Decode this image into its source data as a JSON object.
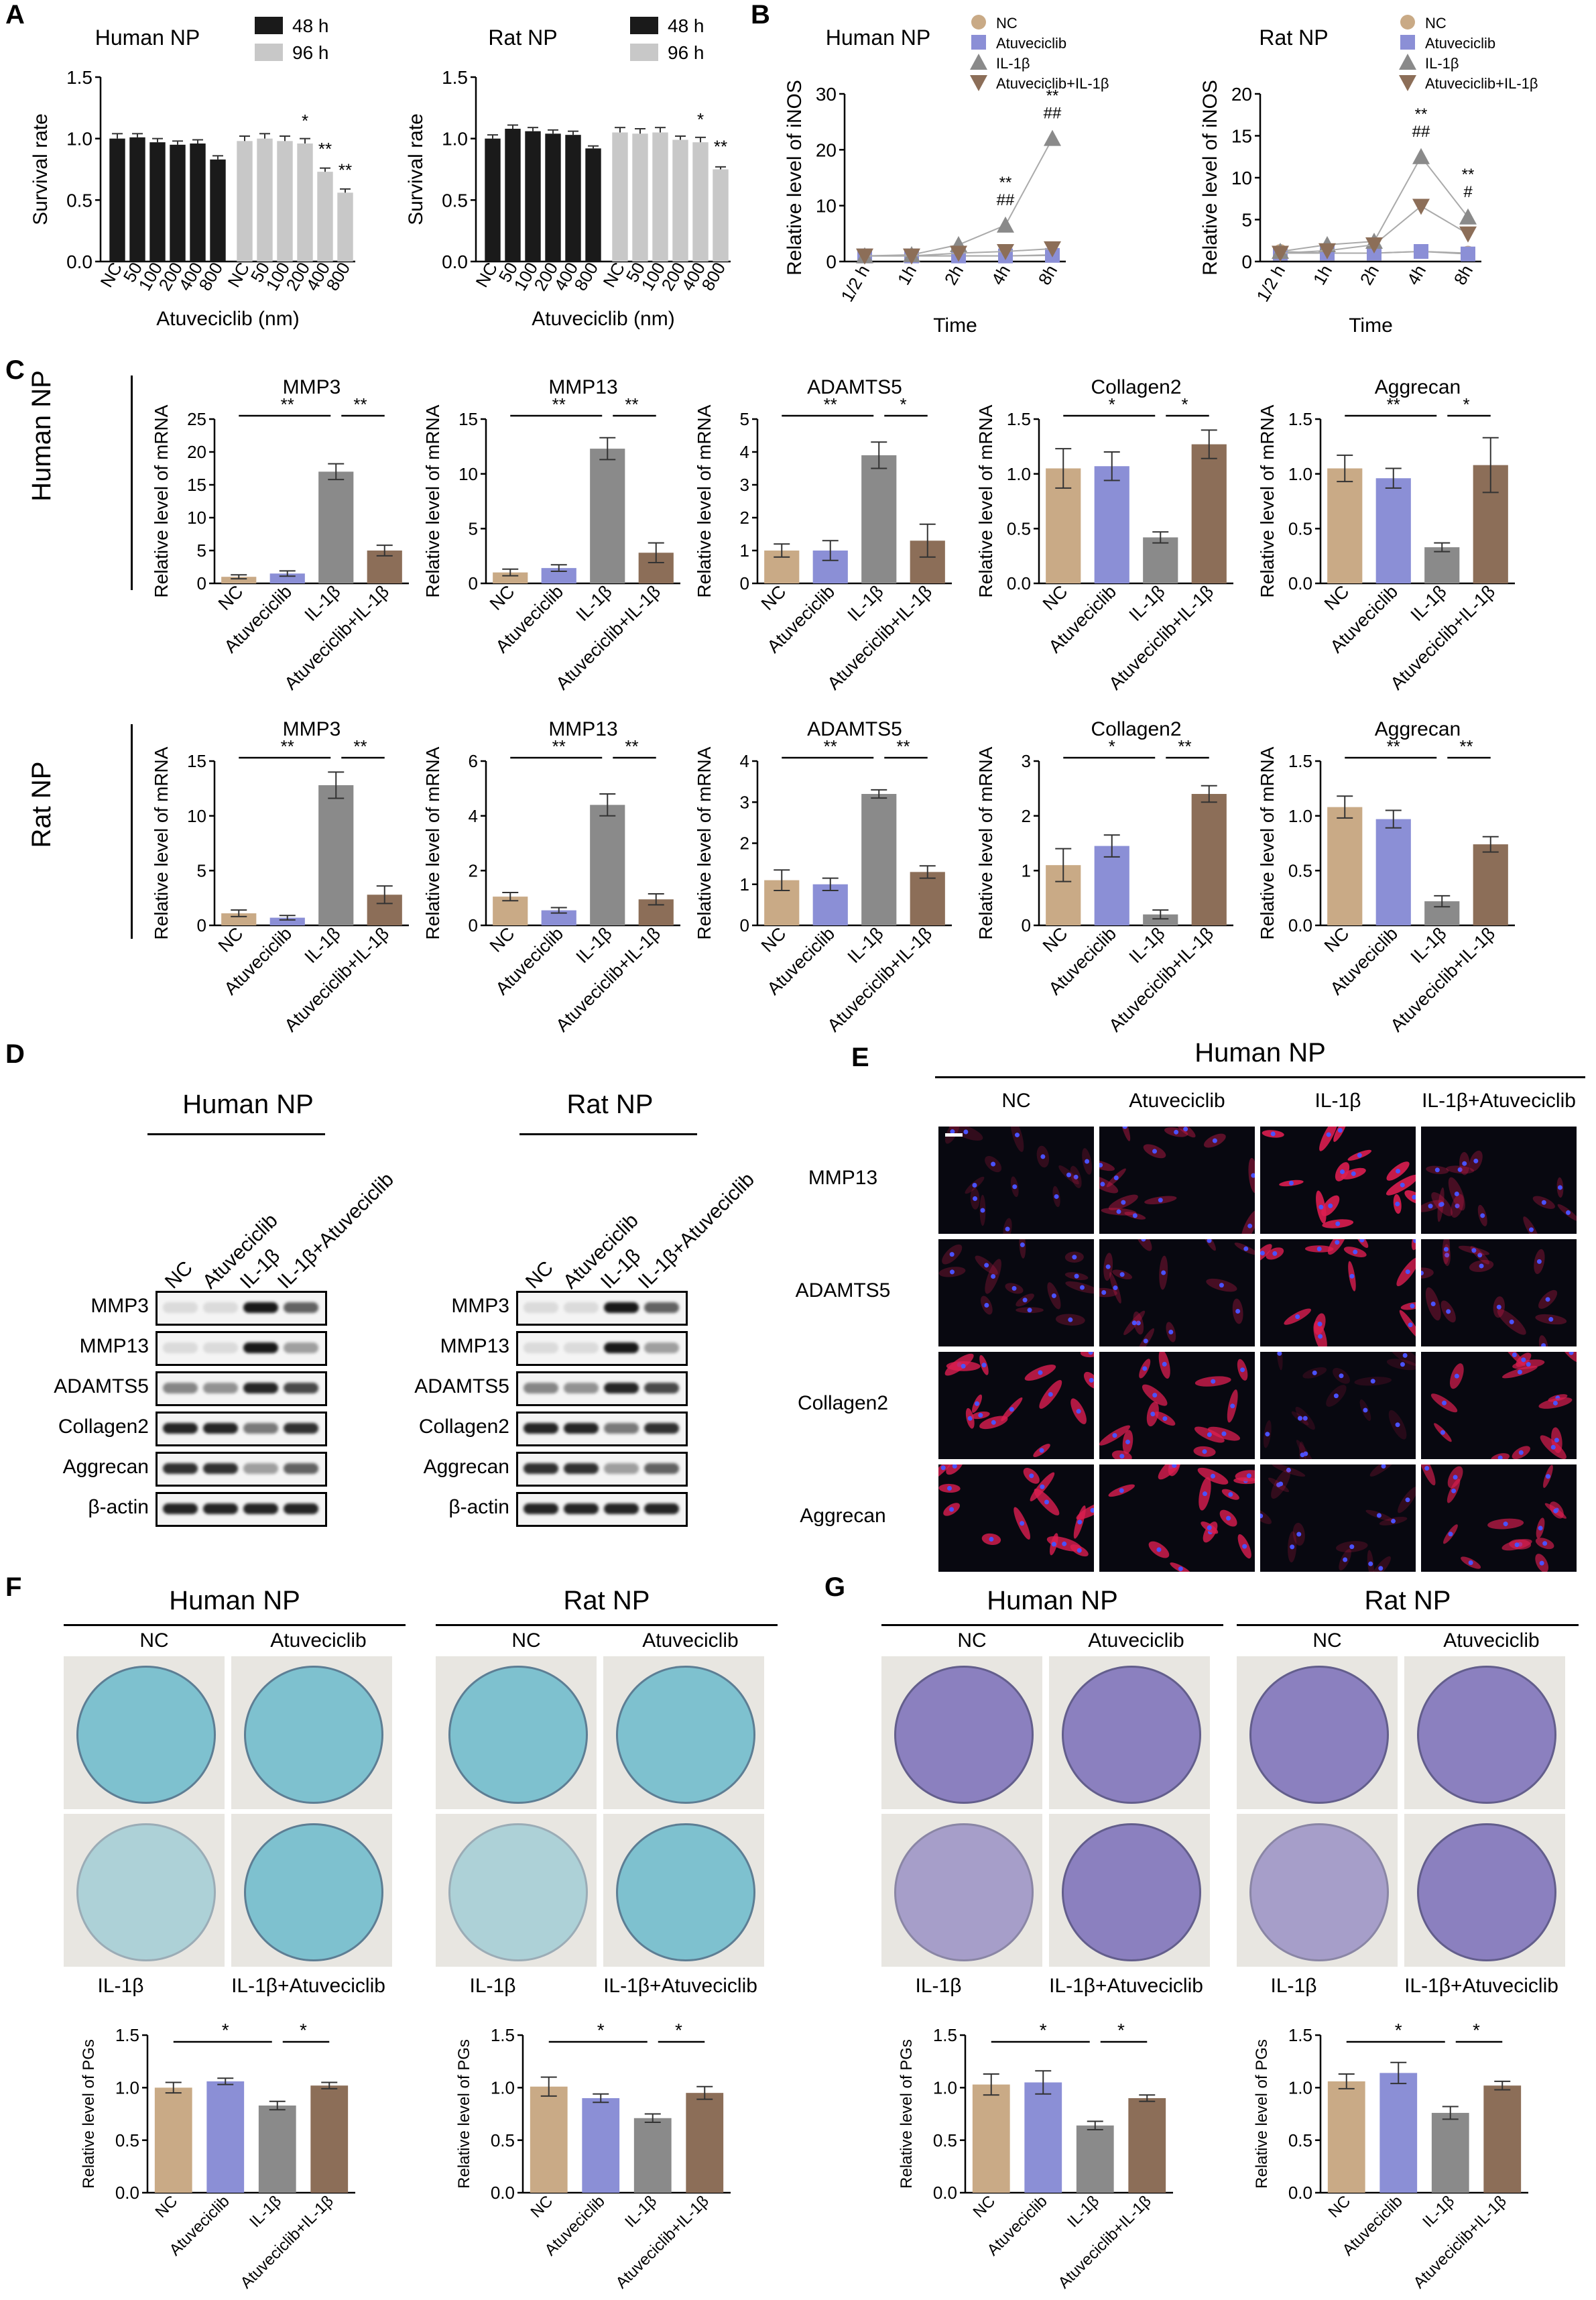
{
  "colors": {
    "nc": "#c9aa86",
    "atu": "#8b8fd6",
    "il": "#8a8a8a",
    "combo": "#8c6e58",
    "black": "#1a1a1a",
    "gray": "#c8c8c8",
    "alcian": "#7ec1cf",
    "crystal": "#8b80bf"
  },
  "panels": {
    "A": "A",
    "B": "B",
    "C": "C",
    "D": "D",
    "E": "E",
    "F": "F",
    "G": "G"
  },
  "row_labels": {
    "human": "Human NP",
    "rat": "Rat NP"
  },
  "panelD": {
    "human_header": "Human NP",
    "rat_header": "Rat NP",
    "lanes": [
      "NC",
      "Atuveciclib",
      "IL-1β",
      "IL-1β+Atuveciclib"
    ],
    "proteins": [
      "MMP3",
      "MMP13",
      "ADAMTS5",
      "Collagen2",
      "Aggrecan",
      "β-actin"
    ]
  },
  "panelE": {
    "header": "Human NP",
    "columns": [
      "NC",
      "Atuveciclib",
      "IL-1β",
      "IL-1β+Atuveciclib"
    ],
    "rows": [
      "MMP13",
      "ADAMTS5",
      "Collagen2",
      "Aggrecan"
    ]
  },
  "panelF": {
    "human_header": "Human NP",
    "rat_header": "Rat NP",
    "top_left": "NC",
    "top_right": "Atuveciclib",
    "bottom_left": "IL-1β",
    "bottom_right": "IL-1β+Atuveciclib"
  },
  "panelG": {
    "human_header": "Human NP",
    "rat_header": "Rat NP",
    "top_left": "NC",
    "top_right": "Atuveciclib",
    "bottom_left": "IL-1β",
    "bottom_right": "IL-1β+Atuveciclib"
  },
  "chart_data": [
    {
      "id": "A-human",
      "type": "bar",
      "title": "Human NP",
      "ylabel": "Survival rate",
      "xlabel": "Atuveciclib (nm)",
      "ylim": [
        0,
        1.5
      ],
      "yticks": [
        0.0,
        0.5,
        1.0,
        1.5
      ],
      "legend": [
        "48 h",
        "96 h"
      ],
      "categories": [
        "NC",
        "50",
        "100",
        "200",
        "400",
        "800"
      ],
      "series": [
        {
          "name": "48 h",
          "values": [
            1.0,
            1.01,
            0.97,
            0.95,
            0.96,
            0.83
          ],
          "errors": [
            0.04,
            0.03,
            0.03,
            0.03,
            0.03,
            0.03
          ],
          "sig": [
            "",
            "",
            "",
            "",
            "",
            ""
          ]
        },
        {
          "name": "96 h",
          "values": [
            0.98,
            1.0,
            0.98,
            0.96,
            0.73,
            0.56
          ],
          "errors": [
            0.04,
            0.04,
            0.04,
            0.04,
            0.03,
            0.03
          ],
          "sig": [
            "",
            "",
            "",
            "*",
            "**",
            "**"
          ]
        }
      ]
    },
    {
      "id": "A-rat",
      "type": "bar",
      "title": "Rat NP",
      "ylabel": "Survival rate",
      "xlabel": "Atuveciclib (nm)",
      "ylim": [
        0,
        1.5
      ],
      "yticks": [
        0.0,
        0.5,
        1.0,
        1.5
      ],
      "legend": [
        "48 h",
        "96 h"
      ],
      "categories": [
        "NC",
        "50",
        "100",
        "200",
        "400",
        "800"
      ],
      "series": [
        {
          "name": "48 h",
          "values": [
            1.0,
            1.08,
            1.06,
            1.04,
            1.03,
            0.92
          ],
          "errors": [
            0.03,
            0.03,
            0.03,
            0.03,
            0.03,
            0.02
          ],
          "sig": [
            "",
            "",
            "",
            "",
            "",
            ""
          ]
        },
        {
          "name": "96 h",
          "values": [
            1.05,
            1.04,
            1.05,
            0.99,
            0.97,
            0.75
          ],
          "errors": [
            0.04,
            0.04,
            0.04,
            0.03,
            0.04,
            0.02
          ],
          "sig": [
            "",
            "",
            "",
            "",
            "*",
            "**"
          ]
        }
      ]
    },
    {
      "id": "B-human",
      "type": "line",
      "title": "Human NP",
      "ylabel": "Relative level of iNOS",
      "xlabel": "Time",
      "ylim": [
        0,
        30
      ],
      "yticks": [
        0,
        10,
        20,
        30
      ],
      "x": [
        "1/2 h",
        "1h",
        "2h",
        "4h",
        "8h"
      ],
      "series": [
        {
          "name": "NC",
          "values": [
            1.0,
            1.0,
            1.0,
            1.0,
            1.2
          ]
        },
        {
          "name": "Atuveciclib",
          "values": [
            1.0,
            1.0,
            1.0,
            1.0,
            1.1
          ]
        },
        {
          "name": "IL-1β",
          "values": [
            1.0,
            1.2,
            3.0,
            6.5,
            22.0
          ]
        },
        {
          "name": "Atuveciclib+IL-1β",
          "values": [
            1.0,
            1.0,
            1.5,
            1.8,
            2.3
          ]
        }
      ],
      "annotations": [
        {
          "x": "4h",
          "text": "**"
        },
        {
          "x": "4h",
          "text": "##"
        },
        {
          "x": "8h",
          "text": "**"
        },
        {
          "x": "8h",
          "text": "##"
        }
      ]
    },
    {
      "id": "B-rat",
      "type": "line",
      "title": "Rat NP",
      "ylabel": "Relative level of iNOS",
      "xlabel": "Time",
      "ylim": [
        0,
        20
      ],
      "yticks": [
        0,
        5,
        10,
        15,
        20
      ],
      "x": [
        "1/2 h",
        "1h",
        "2h",
        "4h",
        "8h"
      ],
      "series": [
        {
          "name": "NC",
          "values": [
            1.2,
            1.0,
            1.0,
            1.2,
            1.0
          ]
        },
        {
          "name": "Atuveciclib",
          "values": [
            1.0,
            1.0,
            1.0,
            1.2,
            0.9
          ]
        },
        {
          "name": "IL-1β",
          "values": [
            1.2,
            2.0,
            2.4,
            12.5,
            5.3
          ]
        },
        {
          "name": "Atuveciclib+IL-1β",
          "values": [
            1.0,
            1.3,
            2.0,
            6.6,
            3.3
          ]
        }
      ],
      "annotations": [
        {
          "x": "4h",
          "text": "**"
        },
        {
          "x": "4h",
          "text": "##"
        },
        {
          "x": "8h",
          "text": "**"
        },
        {
          "x": "8h",
          "text": "#"
        }
      ]
    },
    {
      "id": "C-h1",
      "type": "bar",
      "title": "MMP3",
      "ylabel": "Relative level of mRNA",
      "ylim": [
        0,
        25
      ],
      "yticks": [
        0,
        5,
        10,
        15,
        20,
        25
      ],
      "categories": [
        "NC",
        "Atuveciclib",
        "IL-1β",
        "Atuveciclib+IL-1β"
      ],
      "values": [
        1.0,
        1.5,
        17.0,
        5.0
      ],
      "errors": [
        0.3,
        0.4,
        1.2,
        0.8
      ],
      "sig": [
        "**",
        "**"
      ]
    },
    {
      "id": "C-h2",
      "type": "bar",
      "title": "MMP13",
      "ylabel": "Relative level of mRNA",
      "ylim": [
        0,
        15
      ],
      "yticks": [
        0,
        5,
        10,
        15
      ],
      "categories": [
        "NC",
        "Atuveciclib",
        "IL-1β",
        "Atuveciclib+IL-1β"
      ],
      "values": [
        1.0,
        1.4,
        12.3,
        2.8
      ],
      "errors": [
        0.3,
        0.3,
        1.0,
        0.9
      ],
      "sig": [
        "**",
        "**"
      ]
    },
    {
      "id": "C-h3",
      "type": "bar",
      "title": "ADAMTS5",
      "ylabel": "Relative level of mRNA",
      "ylim": [
        0,
        5
      ],
      "yticks": [
        0,
        1,
        2,
        3,
        4,
        5
      ],
      "categories": [
        "NC",
        "Atuveciclib",
        "IL-1β",
        "Atuveciclib+IL-1β"
      ],
      "values": [
        1.0,
        1.0,
        3.9,
        1.3
      ],
      "errors": [
        0.2,
        0.3,
        0.4,
        0.5
      ],
      "sig": [
        "**",
        "*"
      ]
    },
    {
      "id": "C-h4",
      "type": "bar",
      "title": "Collagen2",
      "ylabel": "Relative level of mRNA",
      "ylim": [
        0,
        1.5
      ],
      "yticks": [
        0.0,
        0.5,
        1.0,
        1.5
      ],
      "categories": [
        "NC",
        "Atuveciclib",
        "IL-1β",
        "Atuveciclib+IL-1β"
      ],
      "values": [
        1.05,
        1.07,
        0.42,
        1.27
      ],
      "errors": [
        0.18,
        0.13,
        0.05,
        0.13
      ],
      "sig": [
        "*",
        "*"
      ]
    },
    {
      "id": "C-h5",
      "type": "bar",
      "title": "Aggrecan",
      "ylabel": "Relative level of mRNA",
      "ylim": [
        0,
        1.5
      ],
      "yticks": [
        0.0,
        0.5,
        1.0,
        1.5
      ],
      "categories": [
        "NC",
        "Atuveciclib",
        "IL-1β",
        "Atuveciclib+IL-1β"
      ],
      "values": [
        1.05,
        0.96,
        0.33,
        1.08
      ],
      "errors": [
        0.12,
        0.09,
        0.04,
        0.25
      ],
      "sig": [
        "**",
        "*"
      ]
    },
    {
      "id": "C-r1",
      "type": "bar",
      "title": "MMP3",
      "ylabel": "Relative level of mRNA",
      "ylim": [
        0,
        15
      ],
      "yticks": [
        0,
        5,
        10,
        15
      ],
      "categories": [
        "NC",
        "Atuveciclib",
        "IL-1β",
        "Atuveciclib+IL-1β"
      ],
      "values": [
        1.1,
        0.7,
        12.8,
        2.8
      ],
      "errors": [
        0.3,
        0.2,
        1.2,
        0.8
      ],
      "sig": [
        "**",
        "**"
      ]
    },
    {
      "id": "C-r2",
      "type": "bar",
      "title": "MMP13",
      "ylabel": "Relative level of mRNA",
      "ylim": [
        0,
        6
      ],
      "yticks": [
        0,
        2,
        4,
        6
      ],
      "categories": [
        "NC",
        "Atuveciclib",
        "IL-1β",
        "Atuveciclib+IL-1β"
      ],
      "values": [
        1.05,
        0.55,
        4.4,
        0.95
      ],
      "errors": [
        0.15,
        0.1,
        0.4,
        0.2
      ],
      "sig": [
        "**",
        "**"
      ]
    },
    {
      "id": "C-r3",
      "type": "bar",
      "title": "ADAMTS5",
      "ylabel": "Relative level of mRNA",
      "ylim": [
        0,
        4
      ],
      "yticks": [
        0,
        1,
        2,
        3,
        4
      ],
      "categories": [
        "NC",
        "Atuveciclib",
        "IL-1β",
        "Atuveciclib+IL-1β"
      ],
      "values": [
        1.1,
        1.0,
        3.2,
        1.3
      ],
      "errors": [
        0.25,
        0.15,
        0.1,
        0.15
      ],
      "sig": [
        "**",
        "**"
      ]
    },
    {
      "id": "C-r4",
      "type": "bar",
      "title": "Collagen2",
      "ylabel": "Relative level of mRNA",
      "ylim": [
        0,
        3
      ],
      "yticks": [
        0,
        1,
        2,
        3
      ],
      "categories": [
        "NC",
        "Atuveciclib",
        "IL-1β",
        "Atuveciclib+IL-1β"
      ],
      "values": [
        1.1,
        1.45,
        0.2,
        2.4
      ],
      "errors": [
        0.3,
        0.2,
        0.08,
        0.15
      ],
      "sig": [
        "*",
        "**"
      ]
    },
    {
      "id": "C-r5",
      "type": "bar",
      "title": "Aggrecan",
      "ylabel": "Relative level of mRNA",
      "ylim": [
        0,
        1.5
      ],
      "yticks": [
        0.0,
        0.5,
        1.0,
        1.5
      ],
      "categories": [
        "NC",
        "Atuveciclib",
        "IL-1β",
        "Atuveciclib+IL-1β"
      ],
      "values": [
        1.08,
        0.97,
        0.22,
        0.74
      ],
      "errors": [
        0.1,
        0.08,
        0.05,
        0.07
      ],
      "sig": [
        "**",
        "**"
      ]
    },
    {
      "id": "F-human",
      "type": "bar",
      "ylabel": "Relative level of PGs",
      "ylim": [
        0,
        1.5
      ],
      "yticks": [
        0.0,
        0.5,
        1.0,
        1.5
      ],
      "categories": [
        "NC",
        "Atuveciclib",
        "IL-1β",
        "Atuveciclib+IL-1β"
      ],
      "values": [
        1.0,
        1.06,
        0.83,
        1.02
      ],
      "errors": [
        0.05,
        0.03,
        0.04,
        0.03
      ],
      "sig": [
        "*",
        "*"
      ]
    },
    {
      "id": "F-rat",
      "type": "bar",
      "ylabel": "Relative level of PGs",
      "ylim": [
        0,
        1.5
      ],
      "yticks": [
        0.0,
        0.5,
        1.0,
        1.5
      ],
      "categories": [
        "NC",
        "Atuveciclib",
        "IL-1β",
        "Atuveciclib+IL-1β"
      ],
      "values": [
        1.01,
        0.9,
        0.71,
        0.95
      ],
      "errors": [
        0.09,
        0.04,
        0.04,
        0.06
      ],
      "sig": [
        "*",
        "*"
      ]
    },
    {
      "id": "G-human",
      "type": "bar",
      "ylabel": "Relative level of PGs",
      "ylim": [
        0,
        1.5
      ],
      "yticks": [
        0.0,
        0.5,
        1.0,
        1.5
      ],
      "categories": [
        "NC",
        "Atuveciclib",
        "IL-1β",
        "Atuveciclib+IL-1β"
      ],
      "values": [
        1.03,
        1.05,
        0.64,
        0.9
      ],
      "errors": [
        0.1,
        0.11,
        0.04,
        0.03
      ],
      "sig": [
        "*",
        "*"
      ]
    },
    {
      "id": "G-rat",
      "type": "bar",
      "ylabel": "Relative level of PGs",
      "ylim": [
        0,
        1.5
      ],
      "yticks": [
        0.0,
        0.5,
        1.0,
        1.5
      ],
      "categories": [
        "NC",
        "Atuveciclib",
        "IL-1β",
        "Atuveciclib+IL-1β"
      ],
      "values": [
        1.06,
        1.14,
        0.76,
        1.02
      ],
      "errors": [
        0.07,
        0.1,
        0.06,
        0.04
      ],
      "sig": [
        "*",
        "*"
      ]
    }
  ]
}
